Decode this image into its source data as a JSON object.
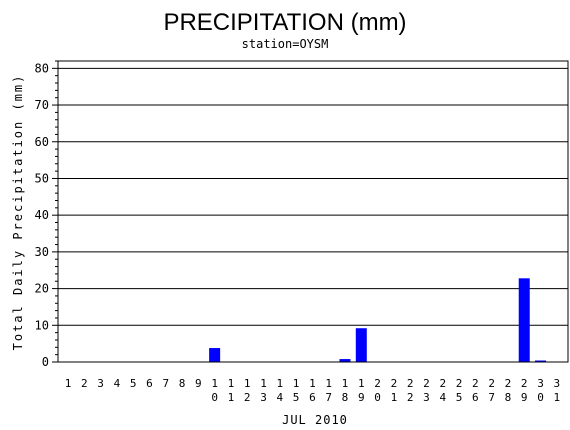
{
  "chart_data": {
    "type": "bar",
    "title": "PRECIPITATION (mm)",
    "subtitle": "station=OYSM",
    "xlabel": "JUL 2010",
    "ylabel": "Total Daily Precipitation (mm)",
    "ylim": [
      0,
      82
    ],
    "yticks": [
      0,
      10,
      20,
      30,
      40,
      50,
      60,
      70,
      80
    ],
    "ytick_labels": [
      "0",
      "10",
      "20",
      "30",
      "40",
      "50",
      "60",
      "70",
      "80"
    ],
    "grid": true,
    "bar_color": "#0000ff",
    "categories": [
      "1",
      "2",
      "3",
      "4",
      "5",
      "6",
      "7",
      "8",
      "9",
      "10",
      "11",
      "12",
      "13",
      "14",
      "15",
      "16",
      "17",
      "18",
      "19",
      "20",
      "21",
      "22",
      "23",
      "24",
      "25",
      "26",
      "27",
      "28",
      "29",
      "30",
      "31"
    ],
    "values": [
      0,
      0,
      0,
      0,
      0,
      0,
      0,
      0,
      0,
      3.8,
      0,
      0,
      0,
      0,
      0,
      0,
      0,
      0.8,
      9.2,
      0,
      0,
      0,
      0,
      0,
      0,
      0,
      0,
      0,
      22.8,
      0.3,
      0
    ]
  }
}
